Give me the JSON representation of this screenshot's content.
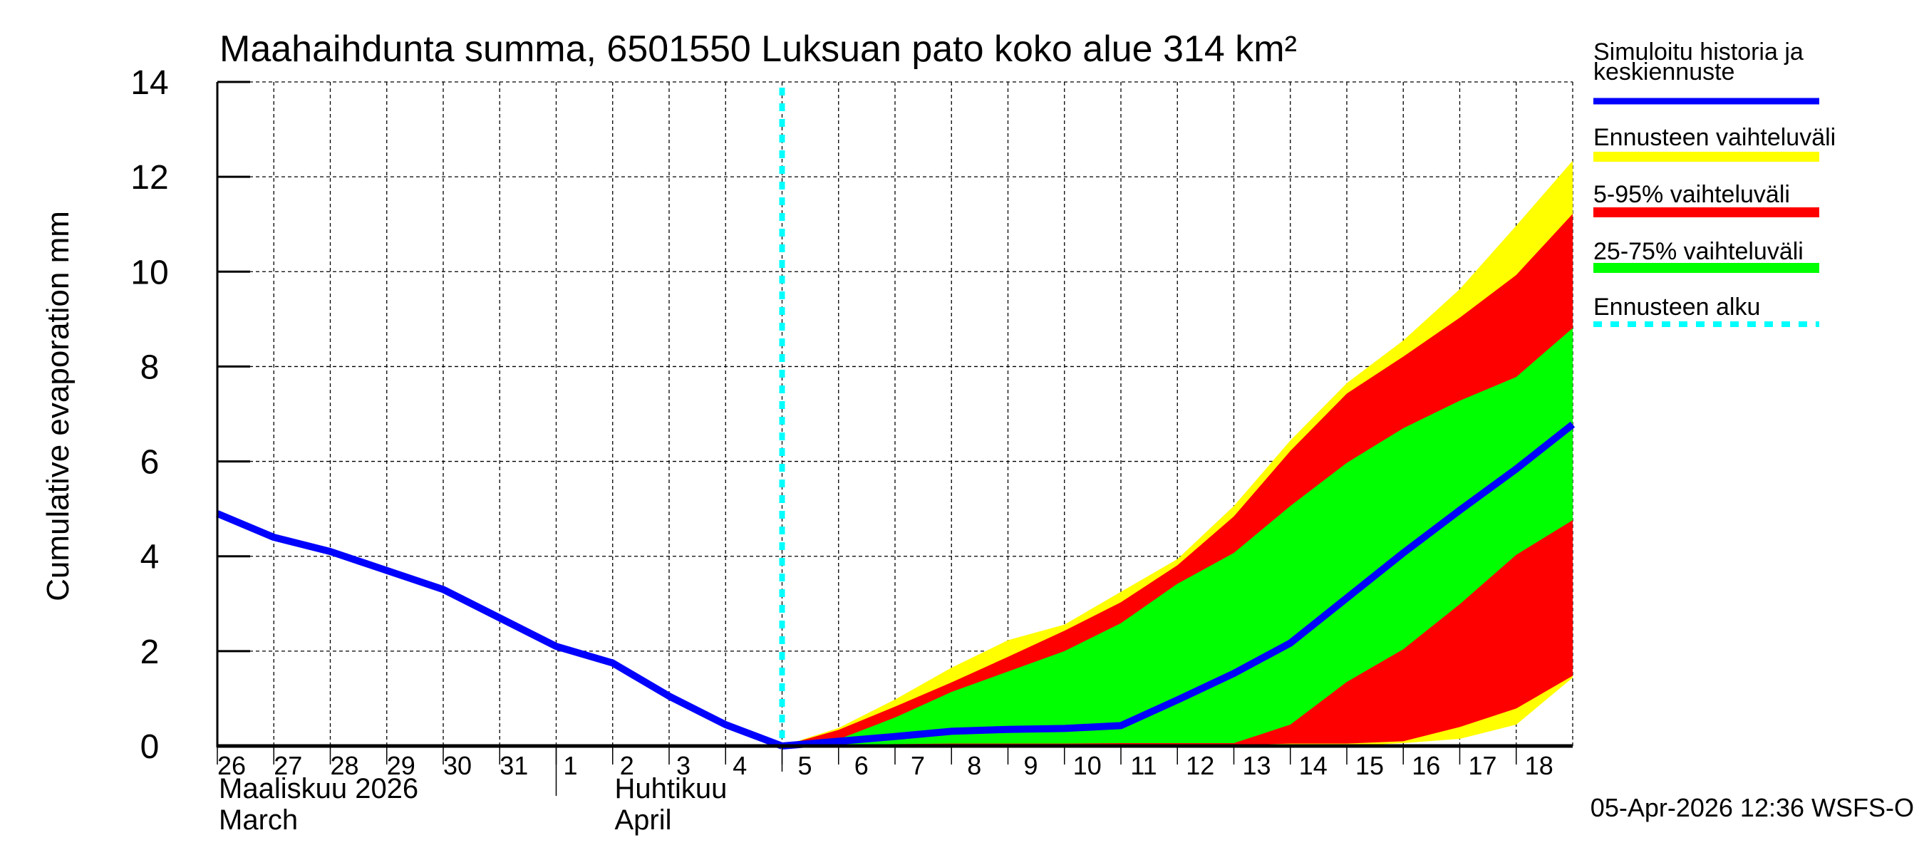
{
  "chart_data": {
    "type": "area",
    "title": "Maahaihdunta summa, 6501550 Luksuan pato koko alue 314 km²",
    "ylabel": "Cumulative evaporation   mm",
    "xlabel": "",
    "ylim": [
      0,
      14
    ],
    "yticks": [
      0,
      2,
      4,
      6,
      8,
      10,
      12,
      14
    ],
    "grid": true,
    "legend_placement": "right",
    "x_day_labels": [
      "26",
      "27",
      "28",
      "29",
      "30",
      "31",
      "1",
      "2",
      "3",
      "4",
      "5",
      "6",
      "7",
      "8",
      "9",
      "10",
      "11",
      "12",
      "13",
      "14",
      "15",
      "16",
      "17",
      "18"
    ],
    "month_labels": [
      {
        "line1": "Maaliskuu 2026",
        "line2": "March",
        "start_index": 0
      },
      {
        "line1": "Huhtikuu",
        "line2": "April",
        "start_index": 6
      }
    ],
    "x_dates": [
      "2026-03-26",
      "2026-03-27",
      "2026-03-28",
      "2026-03-29",
      "2026-03-30",
      "2026-03-31",
      "2026-04-01",
      "2026-04-02",
      "2026-04-03",
      "2026-04-04",
      "2026-04-05",
      "2026-04-06",
      "2026-04-07",
      "2026-04-08",
      "2026-04-09",
      "2026-04-10",
      "2026-04-11",
      "2026-04-12",
      "2026-04-13",
      "2026-04-14",
      "2026-04-15",
      "2026-04-16",
      "2026-04-17",
      "2026-04-18",
      "2026-04-19"
    ],
    "forecast_start": "2026-04-05",
    "history": {
      "name": "Simuloitu historia ja keskiennuste",
      "color": "#0000ff",
      "x": [
        "2026-03-26",
        "2026-03-27",
        "2026-03-28",
        "2026-03-29",
        "2026-03-30",
        "2026-03-31",
        "2026-04-01",
        "2026-04-02",
        "2026-04-03",
        "2026-04-04",
        "2026-04-05"
      ],
      "values": [
        4.9,
        4.4,
        4.1,
        3.7,
        3.3,
        2.7,
        2.1,
        1.75,
        1.05,
        0.45,
        0.0
      ]
    },
    "forecast_x": [
      "2026-04-05",
      "2026-04-06",
      "2026-04-07",
      "2026-04-08",
      "2026-04-09",
      "2026-04-10",
      "2026-04-11",
      "2026-04-12",
      "2026-04-13",
      "2026-04-14",
      "2026-04-15",
      "2026-04-16",
      "2026-04-17",
      "2026-04-18",
      "2026-04-19"
    ],
    "bands": [
      {
        "name": "Ennusteen vaihteluväli",
        "color": "#ffff00",
        "upper": [
          0,
          0.38,
          0.98,
          1.65,
          2.23,
          2.56,
          3.25,
          3.94,
          5.06,
          6.44,
          7.65,
          8.55,
          9.63,
          10.97,
          12.34
        ],
        "lower": [
          0,
          0,
          0,
          0,
          0,
          0,
          0,
          0,
          0,
          0,
          0,
          0.06,
          0.15,
          0.45,
          1.44
        ]
      },
      {
        "name": "5-95% vaihteluväli",
        "color": "#ff0000",
        "upper": [
          0,
          0.34,
          0.83,
          1.34,
          1.88,
          2.43,
          3.03,
          3.81,
          4.84,
          6.22,
          7.43,
          8.21,
          9.03,
          9.93,
          11.22
        ],
        "lower": [
          0,
          0,
          0,
          0,
          0,
          0,
          0,
          0,
          0.02,
          0.05,
          0.05,
          0.1,
          0.4,
          0.79,
          1.48
        ]
      },
      {
        "name": "25-75% vaihteluväli",
        "color": "#00ff00",
        "upper": [
          0,
          0.14,
          0.6,
          1.14,
          1.57,
          2.0,
          2.59,
          3.42,
          4.07,
          5.06,
          5.97,
          6.7,
          7.28,
          7.78,
          8.81
        ],
        "lower": [
          0,
          0.03,
          0.04,
          0.05,
          0.05,
          0.05,
          0.06,
          0.06,
          0.06,
          0.45,
          1.35,
          2.04,
          2.99,
          4.03,
          4.76
        ]
      }
    ],
    "median": {
      "color": "#0000ff",
      "values": [
        0,
        0.1,
        0.2,
        0.31,
        0.35,
        0.37,
        0.43,
        0.97,
        1.53,
        2.17,
        3.12,
        4.07,
        4.97,
        5.84,
        6.78
      ]
    },
    "legend": [
      {
        "label": "Simuloitu historia ja",
        "label2": "keskiennuste",
        "color": "#0000ff",
        "style": "solid"
      },
      {
        "label": "Ennusteen vaihteluväli",
        "color": "#ffff00",
        "style": "bar"
      },
      {
        "label": "5-95% vaihteluväli",
        "color": "#ff0000",
        "style": "bar"
      },
      {
        "label": "25-75% vaihteluväli",
        "color": "#00ff00",
        "style": "bar"
      },
      {
        "label": "Ennusteen alku",
        "color": "#00ffff",
        "style": "dashed"
      }
    ],
    "footer": "05-Apr-2026 12:36 WSFS-O"
  }
}
